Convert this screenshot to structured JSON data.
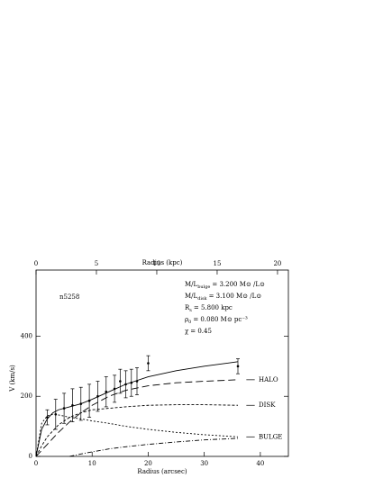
{
  "chart_data": {
    "type": "line",
    "title": "n5258",
    "xlabel": "Radius (arcsec)",
    "x2label": "Radius (kpc)",
    "ylabel": "V (km/s)",
    "xlim": [
      0,
      45
    ],
    "xticks": [
      0,
      10,
      20,
      30,
      40
    ],
    "x2lim": [
      0,
      20.9
    ],
    "x2ticks": [
      0,
      5,
      10,
      15,
      20
    ],
    "ylim": [
      0,
      620
    ],
    "yticks": [
      0,
      200,
      400
    ],
    "annotations": [
      {
        "text": "M/L",
        "sub": "bulge",
        "rest": "=  3.200 M⊙ /L⊙"
      },
      {
        "text": "M/L",
        "sub": "disk",
        "rest": "=  3.100 M⊙ /L⊙"
      },
      {
        "text": "R",
        "sub": "s",
        "rest": "=  5.800 kpc"
      },
      {
        "text": "ρ",
        "sub": "0",
        "rest": "=  0.080 M⊙ pc⁻³"
      },
      {
        "text": "χ",
        "sub": "",
        "rest": "=  0.45"
      }
    ],
    "x": [
      0,
      1,
      2,
      3,
      4,
      6,
      8,
      10,
      13,
      16,
      20,
      25,
      30,
      36
    ],
    "series": [
      {
        "color": "#000000",
        "dash": "",
        "values": [
          0,
          90,
          125,
          145,
          155,
          165,
          175,
          190,
          215,
          240,
          265,
          285,
          300,
          315
        ]
      },
      {
        "name": "HALO",
        "color": "#000000",
        "dash": "8 4",
        "values": [
          0,
          20,
          40,
          60,
          80,
          115,
          145,
          170,
          200,
          220,
          235,
          245,
          250,
          255
        ]
      },
      {
        "name": "DISK",
        "color": "#000000",
        "dash": "3 2",
        "values": [
          0,
          35,
          65,
          85,
          105,
          130,
          145,
          155,
          160,
          165,
          170,
          172,
          172,
          170
        ]
      },
      {
        "name": "BULGE",
        "color": "#000000",
        "dash": "2 2",
        "values": [
          0,
          110,
          135,
          140,
          138,
          130,
          125,
          118,
          110,
          100,
          90,
          80,
          72,
          65
        ]
      },
      {
        "color": "#000000",
        "dash": "5 2 1 2",
        "values": [
          null,
          null,
          null,
          null,
          null,
          0,
          8,
          15,
          25,
          32,
          40,
          48,
          55,
          60
        ]
      }
    ],
    "observed": {
      "x": [
        2,
        3.5,
        5,
        6.5,
        8,
        9.5,
        11,
        12.5,
        14,
        15,
        16,
        17,
        18,
        20,
        36
      ],
      "values": [
        130,
        140,
        160,
        170,
        175,
        185,
        200,
        215,
        225,
        250,
        240,
        245,
        250,
        310,
        300
      ],
      "errors": [
        25,
        50,
        50,
        55,
        55,
        55,
        50,
        50,
        45,
        40,
        45,
        45,
        45,
        25,
        25
      ]
    }
  }
}
